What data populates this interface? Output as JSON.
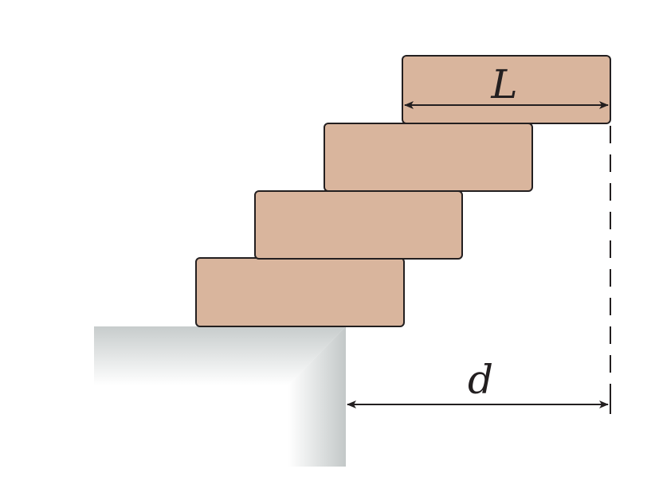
{
  "labels": {
    "length": "L",
    "overhang": "d"
  },
  "colors": {
    "block_fill": "#d9b59d",
    "block_stroke": "#231f20",
    "arrow": "#231f20",
    "table_light": "#ffffff",
    "table_dark": "#c3c8c8"
  },
  "blocks": [
    {
      "name": "block-1"
    },
    {
      "name": "block-2"
    },
    {
      "name": "block-3"
    },
    {
      "name": "block-4"
    }
  ]
}
